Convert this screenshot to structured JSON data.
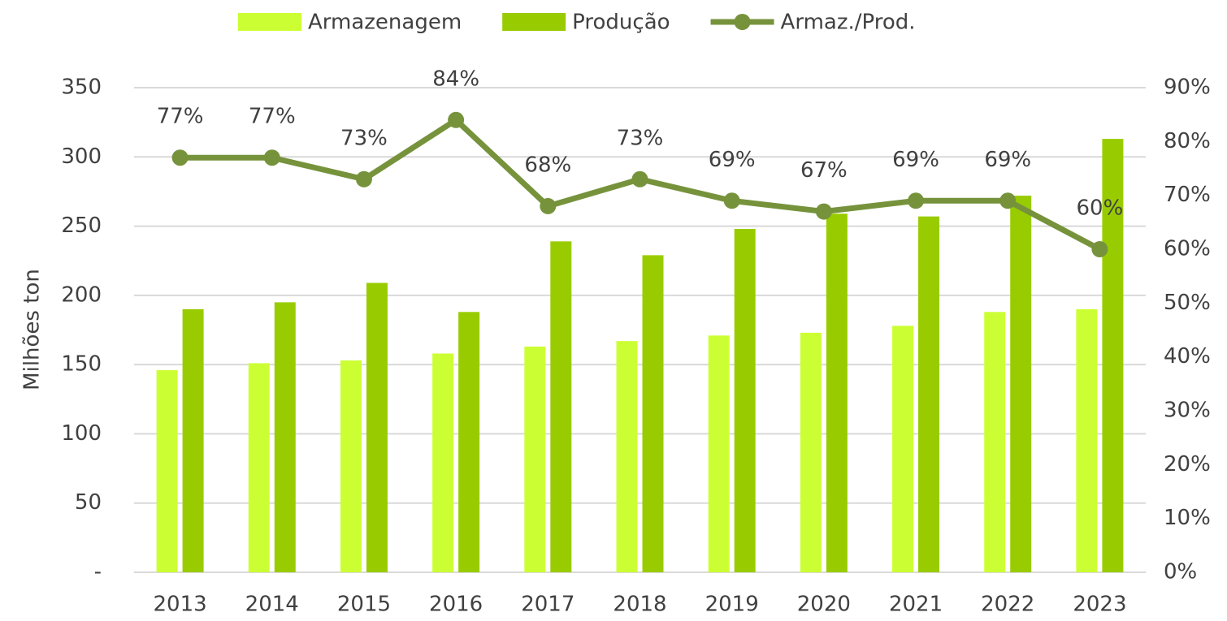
{
  "chart_data": {
    "type": "bar_line",
    "categories": [
      "2013",
      "2014",
      "2015",
      "2016",
      "2017",
      "2018",
      "2019",
      "2020",
      "2021",
      "2022",
      "2023"
    ],
    "ylabel": "Milhões ton",
    "series": [
      {
        "name": "Armazenagem",
        "type": "bar",
        "color": "#ccff33",
        "values": [
          146,
          151,
          153,
          158,
          163,
          167,
          171,
          173,
          178,
          188,
          190
        ]
      },
      {
        "name": "Produção",
        "type": "bar",
        "color": "#99cc00",
        "values": [
          190,
          195,
          209,
          188,
          239,
          229,
          248,
          259,
          257,
          272,
          313
        ]
      },
      {
        "name": "Armaz./Prod.",
        "type": "line",
        "axis": "y2",
        "color": "#76933c",
        "values": [
          77,
          77,
          73,
          84,
          68,
          73,
          69,
          67,
          69,
          69,
          60
        ],
        "value_labels": [
          "77%",
          "77%",
          "73%",
          "84%",
          "68%",
          "73%",
          "69%",
          "67%",
          "69%",
          "69%",
          "60%"
        ]
      }
    ],
    "ylim": [
      0,
      350
    ],
    "yticks": [
      {
        "value": 0,
        "label": "-"
      },
      50,
      100,
      150,
      200,
      250,
      300,
      350
    ],
    "y2lim": [
      0,
      90
    ],
    "y2ticks": [
      {
        "value": 0,
        "label": "0%"
      },
      {
        "value": 10,
        "label": "10%"
      },
      {
        "value": 20,
        "label": "20%"
      },
      {
        "value": 30,
        "label": "30%"
      },
      {
        "value": 40,
        "label": "40%"
      },
      {
        "value": 50,
        "label": "50%"
      },
      {
        "value": 60,
        "label": "60%"
      },
      {
        "value": 70,
        "label": "70%"
      },
      {
        "value": 80,
        "label": "80%"
      },
      {
        "value": 90,
        "label": "90%"
      }
    ],
    "grid": true,
    "legend": "top"
  }
}
